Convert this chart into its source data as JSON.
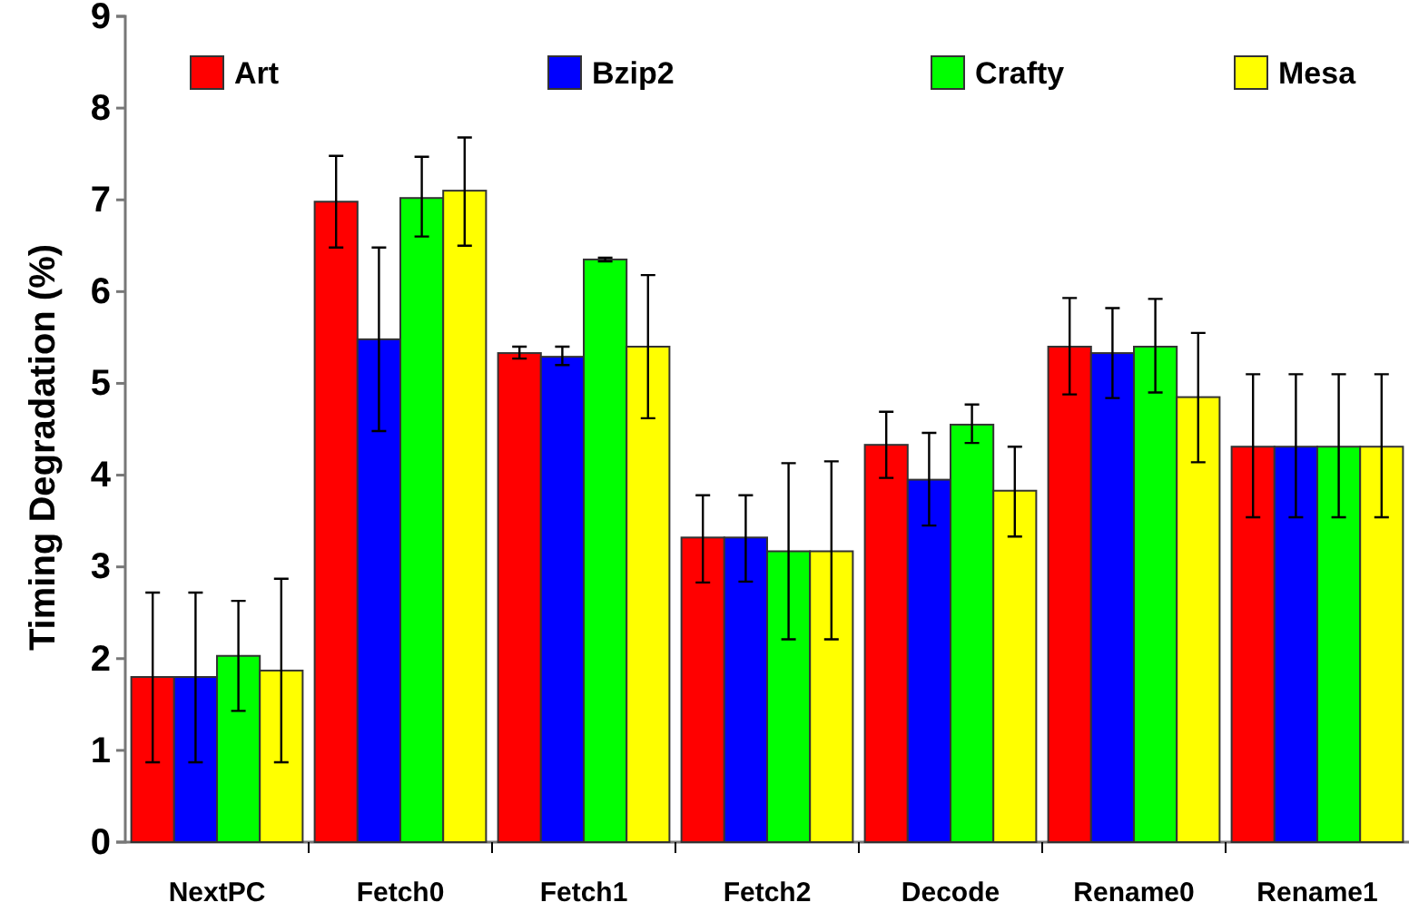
{
  "chart_data": {
    "type": "bar",
    "ylabel": "Timing Degradation (%)",
    "categories": [
      "NextPC",
      "Fetch0",
      "Fetch1",
      "Fetch2",
      "Decode",
      "Rename0",
      "Rename1"
    ],
    "series": [
      {
        "name": "Art",
        "color": "#ff0000",
        "values": [
          1.8,
          6.98,
          5.33,
          3.32,
          4.33,
          5.4,
          4.31
        ],
        "errors": [
          [
            0.87,
            2.72
          ],
          [
            6.48,
            7.48
          ],
          [
            5.27,
            5.4
          ],
          [
            2.83,
            3.78
          ],
          [
            3.97,
            4.69
          ],
          [
            4.88,
            5.93
          ],
          [
            3.54,
            5.1
          ]
        ]
      },
      {
        "name": "Bzip2",
        "color": "#0000ff",
        "values": [
          1.8,
          5.48,
          5.29,
          3.32,
          3.95,
          5.33,
          4.31
        ],
        "errors": [
          [
            0.87,
            2.72
          ],
          [
            4.48,
            6.48
          ],
          [
            5.2,
            5.4
          ],
          [
            2.84,
            3.78
          ],
          [
            3.45,
            4.46
          ],
          [
            4.84,
            5.82
          ],
          [
            3.54,
            5.1
          ]
        ]
      },
      {
        "name": "Crafty",
        "color": "#00ff00",
        "values": [
          2.03,
          7.02,
          6.35,
          3.17,
          4.55,
          5.4,
          4.31
        ],
        "errors": [
          [
            1.43,
            2.63
          ],
          [
            6.6,
            7.47
          ],
          [
            6.33,
            6.37
          ],
          [
            2.21,
            4.13
          ],
          [
            4.35,
            4.77
          ],
          [
            4.9,
            5.92
          ],
          [
            3.54,
            5.1
          ]
        ]
      },
      {
        "name": "Mesa",
        "color": "#ffff00",
        "values": [
          1.87,
          7.1,
          5.4,
          3.17,
          3.83,
          4.85,
          4.31
        ],
        "errors": [
          [
            0.87,
            2.87
          ],
          [
            6.5,
            7.68
          ],
          [
            4.62,
            6.18
          ],
          [
            2.21,
            4.15
          ],
          [
            3.33,
            4.31
          ],
          [
            4.14,
            5.55
          ],
          [
            3.54,
            5.1
          ]
        ]
      }
    ],
    "ylim": [
      0,
      9
    ],
    "yticks": [
      0,
      1,
      2,
      3,
      4,
      5,
      6,
      7,
      8,
      9
    ],
    "grid": false,
    "legend": "top"
  }
}
